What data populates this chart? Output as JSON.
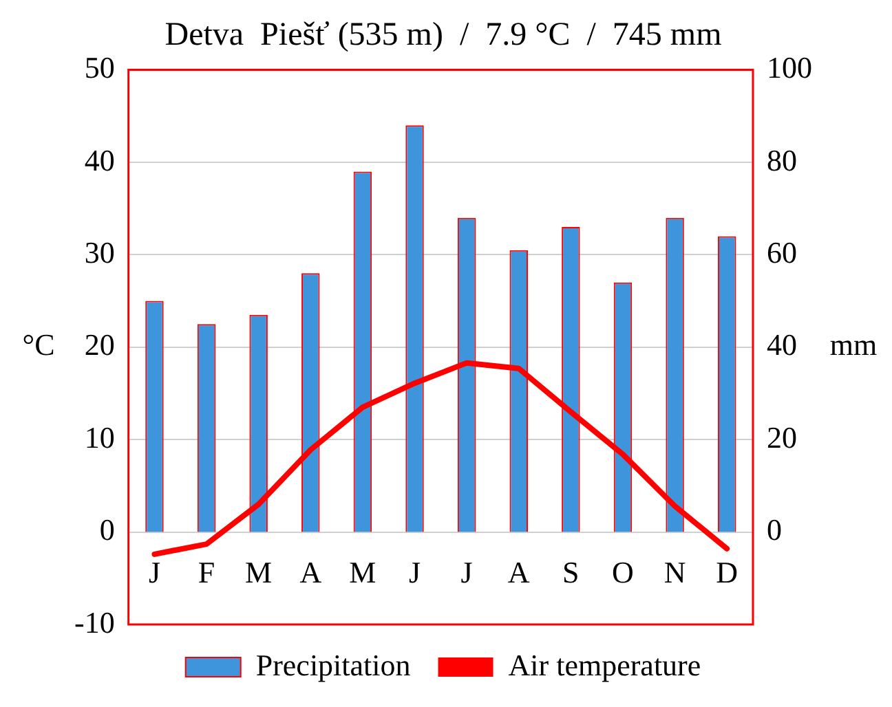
{
  "chart_data": {
    "type": "bar",
    "title": "Detva  Piešť (535 m)  /  7.9 °C  /  745 mm",
    "ylabel": "°C",
    "y2label": "mm",
    "categories": [
      "J",
      "F",
      "M",
      "A",
      "M",
      "J",
      "J",
      "A",
      "S",
      "O",
      "N",
      "D"
    ],
    "series": [
      {
        "name": "Precipitation",
        "axis": "y2",
        "color": "#3f95dc",
        "values": [
          50,
          45,
          47,
          56,
          78,
          88,
          68,
          61,
          66,
          54,
          68,
          64
        ]
      },
      {
        "name": "Air temperature",
        "type": "line",
        "axis": "y",
        "color": "#ff0000",
        "values": [
          -2.4,
          -1.3,
          3.0,
          8.9,
          13.5,
          16.1,
          18.3,
          17.7,
          13.0,
          8.4,
          2.8,
          -1.8
        ]
      }
    ],
    "ylim": [
      -10,
      50
    ],
    "yticks": [
      -10,
      0,
      10,
      20,
      30,
      40,
      50
    ],
    "y2lim": [
      -20,
      100
    ],
    "y2ticks": [
      0,
      20,
      40,
      60,
      80,
      100
    ],
    "grid": "y",
    "legend": "bottom",
    "marker": "none"
  }
}
